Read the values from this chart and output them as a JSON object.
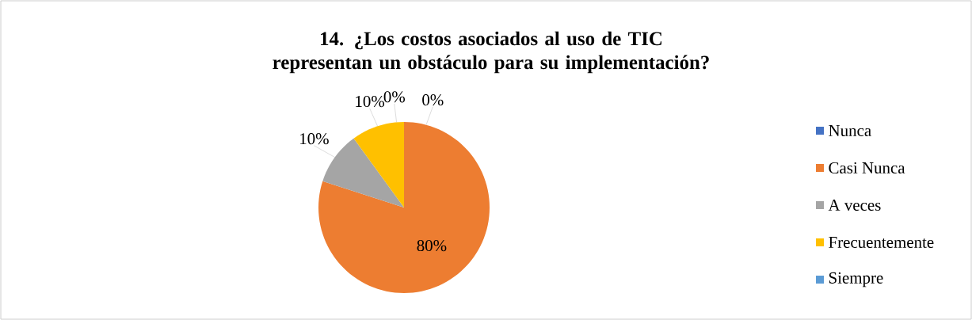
{
  "chart_data": {
    "type": "pie",
    "title": "14. ¿Los costos asociados al uso de TIC representan un obstáculo para su implementación?",
    "categories": [
      "Nunca",
      "Casi Nunca",
      "A veces",
      "Frecuentemente",
      "Siempre"
    ],
    "values": [
      0,
      80,
      10,
      10,
      0
    ],
    "colors": [
      "#4472c4",
      "#ed7d31",
      "#a5a5a5",
      "#ffc000",
      "#5b9bd5"
    ],
    "value_labels": [
      "0%",
      "80%",
      "10%",
      "10%",
      "0%"
    ],
    "legend": "right"
  }
}
